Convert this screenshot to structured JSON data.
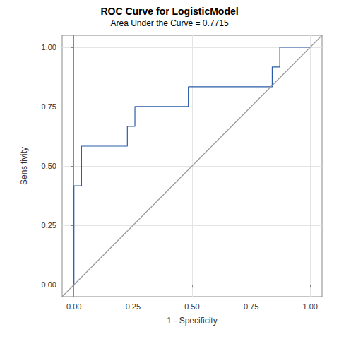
{
  "chart_data": {
    "type": "line",
    "title": "ROC Curve for LogisticModel",
    "subtitle": "Area Under the Curve = 0.7715",
    "x_label": "1 - Specificity",
    "y_label": "Sensitivity",
    "xlim": [
      -0.05,
      1.05
    ],
    "ylim": [
      -0.05,
      1.05
    ],
    "xticks": [
      {
        "value": 0,
        "label": "0.00"
      },
      {
        "value": 0.25,
        "label": "0.25"
      },
      {
        "value": 0.5,
        "label": "0.50"
      },
      {
        "value": 0.75,
        "label": "0.75"
      },
      {
        "value": 1,
        "label": "1.00"
      }
    ],
    "yticks": [
      {
        "value": 0,
        "label": "0.00"
      },
      {
        "value": 0.25,
        "label": "0.25"
      },
      {
        "value": 0.5,
        "label": "0.50"
      },
      {
        "value": 0.75,
        "label": "0.75"
      },
      {
        "value": 1,
        "label": "1.00"
      }
    ],
    "grid": true,
    "series": [
      {
        "color": "#2b5ca8",
        "line_style": "solid",
        "x": [
          0,
          0,
          0.032,
          0.032,
          0.226,
          0.226,
          0.258,
          0.258,
          0.484,
          0.484,
          0.839,
          0.839,
          0.871,
          0.871,
          1
        ],
        "values": [
          0,
          0.4167,
          0.4167,
          0.5833,
          0.5833,
          0.6667,
          0.6667,
          0.75,
          0.75,
          0.8333,
          0.8333,
          0.9167,
          0.9167,
          1,
          1
        ]
      },
      {
        "color": "#999999",
        "line_style": "solid",
        "x": [
          -0.05,
          1.05
        ],
        "values": [
          -0.05,
          1.05
        ]
      }
    ]
  }
}
